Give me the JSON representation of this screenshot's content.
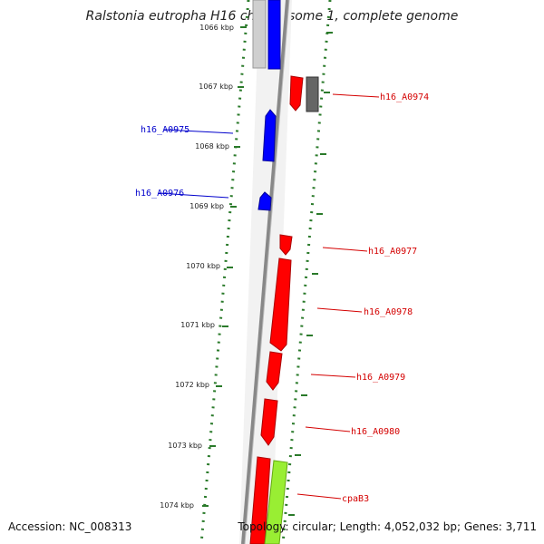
{
  "title": "Ralstonia eutropha H16 chromosome 1, complete genome",
  "footer": {
    "accession": "Accession: NC_008313",
    "stats": "Topology: circular; Length: 4,052,032 bp; Genes: 3,711"
  },
  "kbp_labels": [
    "1066 kbp",
    "1067 kbp",
    "1068 kbp",
    "1069 kbp",
    "1070 kbp",
    "1071 kbp",
    "1072 kbp",
    "1073 kbp",
    "1074 kbp"
  ],
  "gene_labels": [
    {
      "text": "h16_A0974",
      "color": "#d40000"
    },
    {
      "text": "h16_A0975",
      "color": "#0000cc"
    },
    {
      "text": "h16_A0976",
      "color": "#0000cc"
    },
    {
      "text": "h16_A0977",
      "color": "#d40000"
    },
    {
      "text": "h16_A0978",
      "color": "#d40000"
    },
    {
      "text": "h16_A0979",
      "color": "#d40000"
    },
    {
      "text": "h16_A0980",
      "color": "#d40000"
    },
    {
      "text": "cpaB3",
      "color": "#d40000"
    }
  ],
  "colors": {
    "forward_gene": "#ff0000",
    "reverse_gene": "#0000ff",
    "grey_feature": "#666666",
    "green_feature": "#99ee33",
    "tick": "#2a7a2a",
    "backbone": "#888888"
  }
}
